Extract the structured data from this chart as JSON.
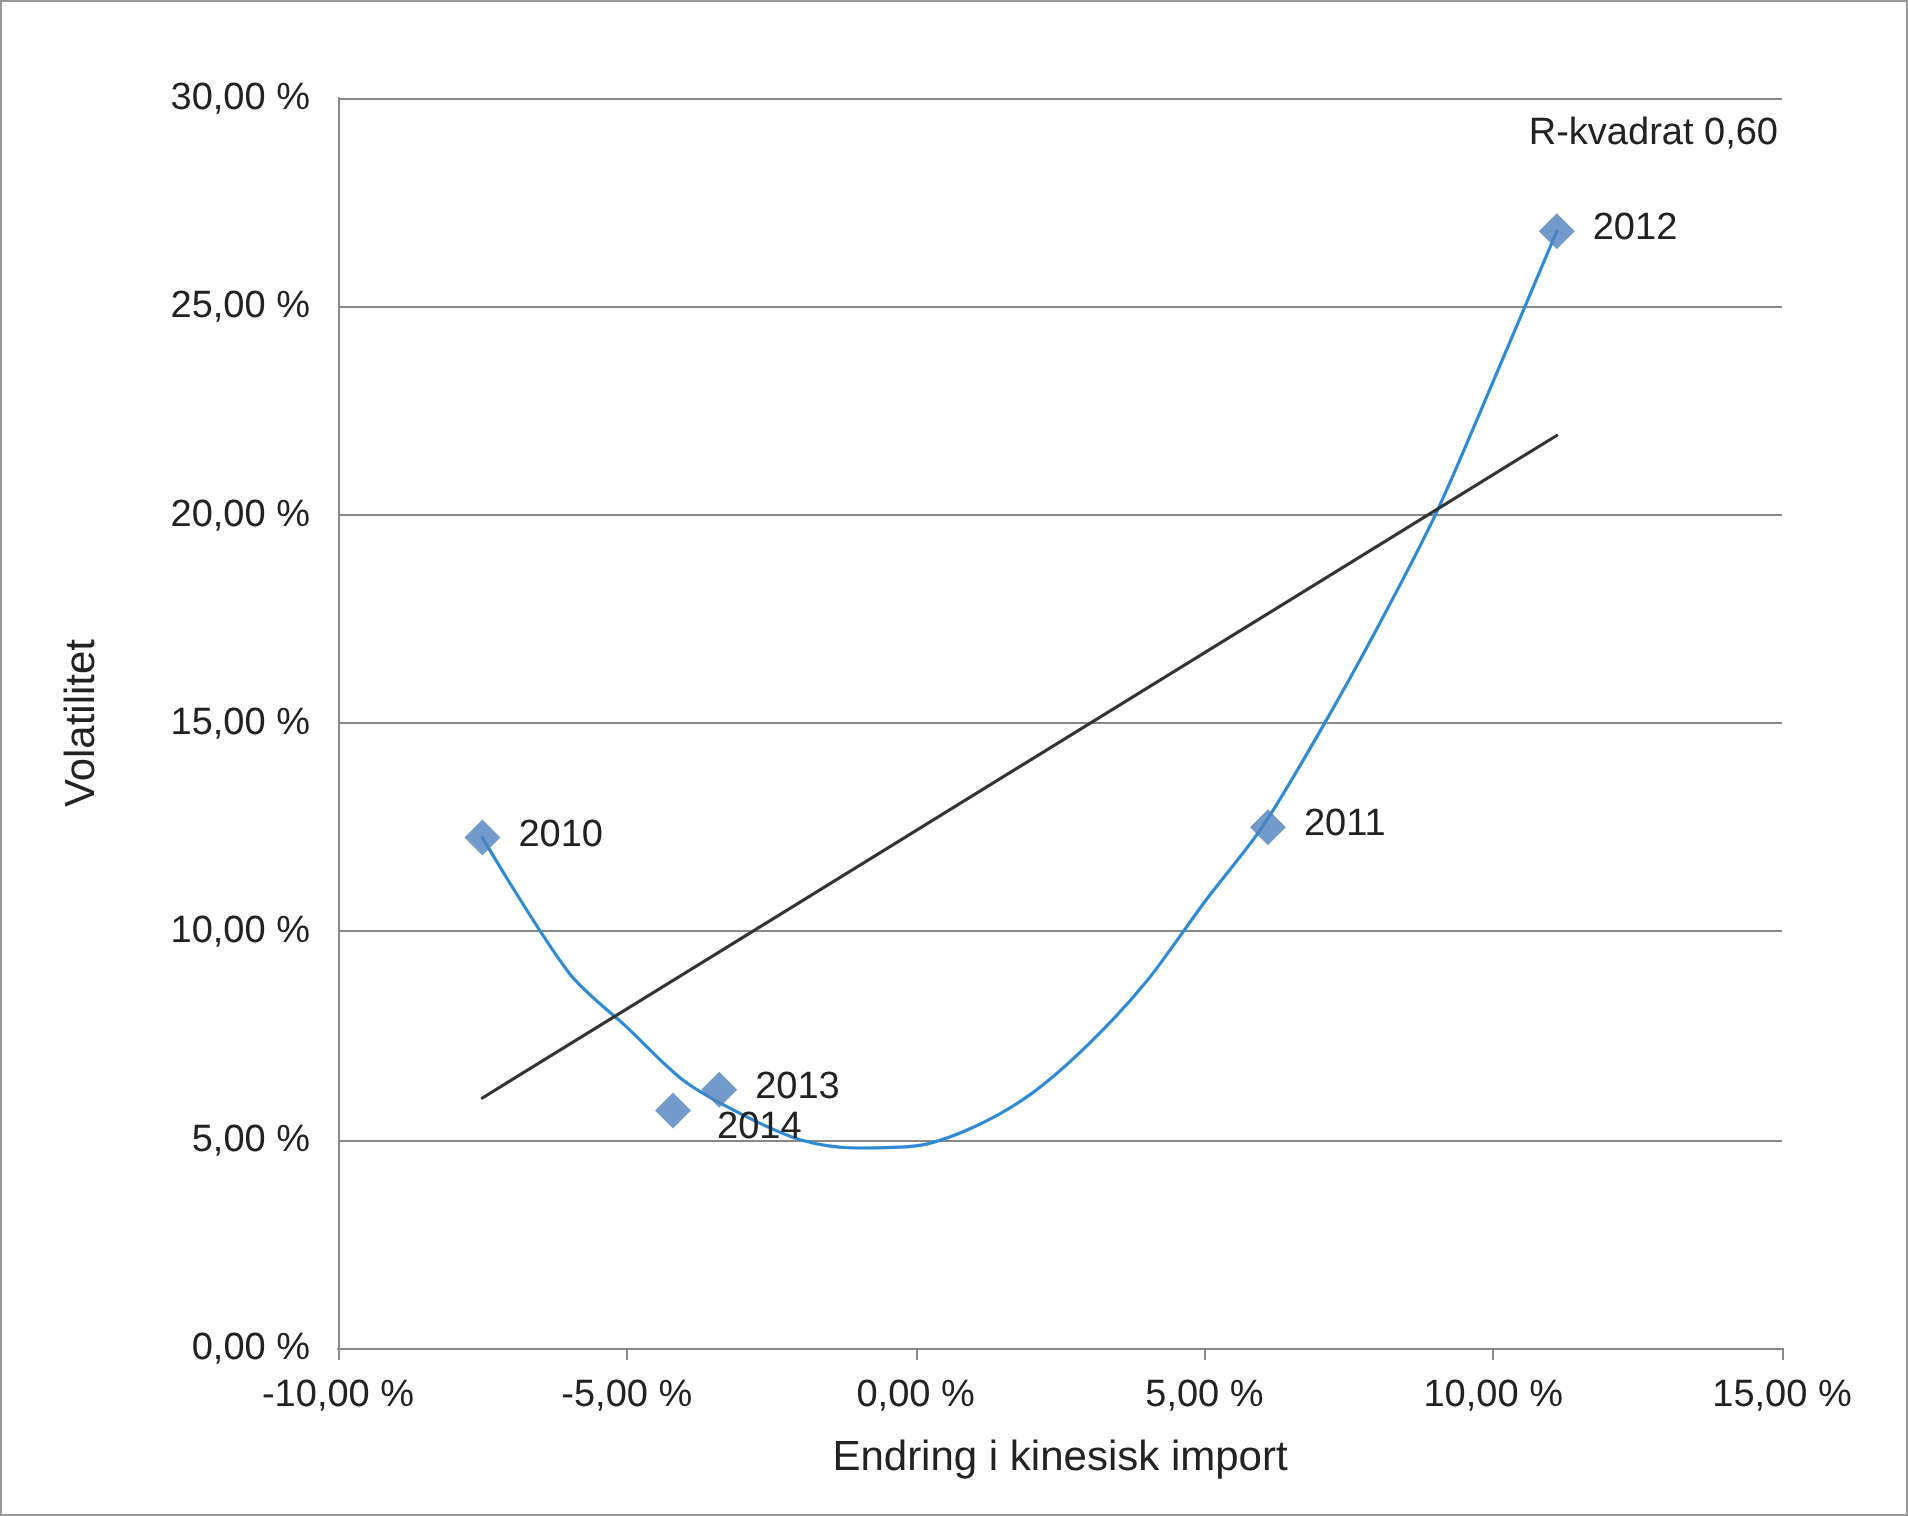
{
  "chart_data": {
    "type": "scatter",
    "xlabel": "Endring i kinesisk import",
    "ylabel": "Volatilitet",
    "annotations": [
      "R-kvadrat 0,60",
      {
        "text": "2010",
        "x": -7.5,
        "y": 12.25
      },
      {
        "text": "2011",
        "x": 6.1,
        "y": 12.5
      },
      {
        "text": "2012",
        "x": 11.1,
        "y": 26.8
      },
      {
        "text": "2013",
        "x": -3.4,
        "y": 6.2
      },
      {
        "text": "2014",
        "x": -4.2,
        "y": 5.7
      }
    ],
    "xlim": [
      -10,
      15
    ],
    "xticks": [
      {
        "value": -10,
        "label": "-10,00 %"
      },
      {
        "value": -5,
        "label": "-5,00 %"
      },
      {
        "value": 0,
        "label": "0,00 %"
      },
      {
        "value": 5,
        "label": "5,00 %"
      },
      {
        "value": 10,
        "label": "10,00 %"
      },
      {
        "value": 15,
        "label": "15,00 %"
      }
    ],
    "ylim": [
      0,
      30
    ],
    "yticks": [
      {
        "value": 0,
        "label": "0,00 %"
      },
      {
        "value": 5,
        "label": "5,00 %"
      },
      {
        "value": 10,
        "label": "10,00 %"
      },
      {
        "value": 15,
        "label": "15,00 %"
      },
      {
        "value": 20,
        "label": "20,00 %"
      },
      {
        "value": 25,
        "label": "25,00 %"
      },
      {
        "value": 30,
        "label": "30,00 %"
      }
    ],
    "grid": "y",
    "series": [
      {
        "type": "line",
        "color": "#2f8ad6",
        "marker": "none",
        "x": [
          -7.5,
          -6,
          -5,
          -4,
          -3,
          -2,
          -1,
          0,
          1,
          2,
          3,
          4,
          5,
          6,
          7,
          8,
          9,
          10,
          11.1
        ],
        "values": [
          12.25,
          9.0,
          7.7,
          6.4,
          5.6,
          5.0,
          4.8,
          4.85,
          5.3,
          6.1,
          7.3,
          8.8,
          10.7,
          12.5,
          14.8,
          17.3,
          20.0,
          23.2,
          26.8
        ]
      },
      {
        "type": "line",
        "color": "#333333",
        "marker": "none",
        "x": [
          -7.5,
          11.1
        ],
        "values": [
          6.0,
          21.9
        ]
      },
      {
        "color": "#4f81bd",
        "marker": "diamond",
        "x": [
          -7.5,
          6.1,
          11.1,
          -3.4,
          -4.2
        ],
        "values": [
          12.25,
          12.5,
          26.8,
          6.2,
          5.7
        ]
      }
    ]
  }
}
